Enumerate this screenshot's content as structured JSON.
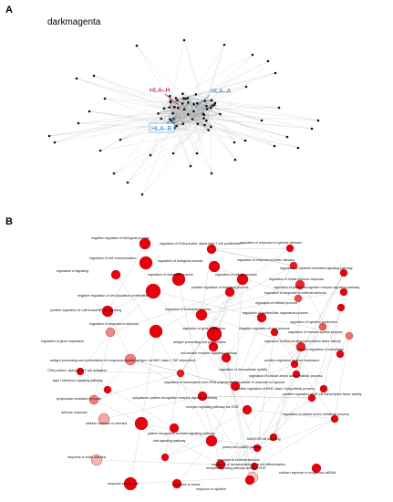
{
  "panel_a": {
    "letter": "A",
    "module_name": "darkmagenta",
    "hub_labels": [
      {
        "text": "HLA–H",
        "color": "#c0102a"
      },
      {
        "text": "HLA–A",
        "color": "#2a7fc0"
      },
      {
        "text": "HLA–B",
        "color": "#2a7fc0"
      }
    ]
  },
  "panel_b": {
    "letter": "B",
    "terms": [
      "negative regulation of biological process",
      "regulation of CD8-positive, alpha-beta T cell proliferation",
      "regulation of response to cytokine stimulus",
      "regulation of cell communication",
      "regulation of biological process",
      "regulation of response to biotic stimulus",
      "regulation of signaling",
      "regulation of metabolic process",
      "regulation of cellular process",
      "regulation of cytokine-mediated signaling pathway",
      "regulation of innate immune response",
      "regulation of pattern recognition receptor signaling pathway",
      "positive regulation of biological process",
      "regulation of response to external stimulus",
      "negative regulation of cell population proliferation",
      "regulation of cellular process",
      "positive regulation of I-κB kinase/NF-κB signaling",
      "regulation of molecular function",
      "regulation of multicellular organismal process",
      "regulation of cytokine production",
      "regulation of response to stimulus",
      "regulation of gene expression",
      "negative regulation of viral process",
      "regulation of immune system process",
      "regulation of gene expression",
      "antigen processing and presentation",
      "regulation of DNA-binding transcription factor activity",
      "positive regulation of autophagy",
      "antigen processing and presentation of exogenous peptide antigen via MHC class I, TAP-dependent",
      "cell surface receptor signaling pathway",
      "positive regulation of gene expression",
      "regulation of ribonuclease activity",
      "CD8-positive, alpha-beta T cell activation",
      "regulation of cellular amino acid metabolic process",
      "type I interferon signaling pathway",
      "regulation of transcription from RNA polymerase II promoter in response to hypoxia",
      "positive regulation of MHC class I biosynthetic process",
      "lymphocyte mediated immunity",
      "cytoplasmic pattern recognition receptor signaling pathway",
      "positive regulation of NF-κB transcription factor activity",
      "receptor signaling pathway via STAT",
      "defense response",
      "cellular response to stimulus",
      "regulation of cellular amino metabolic process",
      "pattern recognition receptor signaling pathway",
      "MAVS-NF-κB signaling",
      "stat signaling pathway",
      "planar cell polarity pathway",
      "response to external stimulus",
      "response to biotic stimulus",
      "receptor signaling pathway via JAK-STAT",
      "cellular response to exogenous dsRNA",
      "regulation of hematopoietic stem cell differentiation",
      "response to chemical",
      "response to stress",
      "response to cytokine"
    ]
  }
}
